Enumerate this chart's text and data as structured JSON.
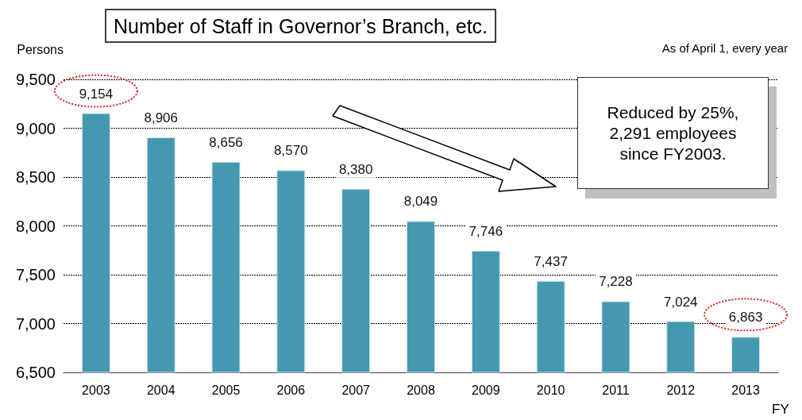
{
  "chart_data": {
    "type": "bar",
    "title": "Number of Staff in Governor’s Branch, etc.",
    "subtitle": "As of April 1, every year",
    "xlabel": "FY",
    "ylabel": "Persons",
    "categories": [
      "2003",
      "2004",
      "2005",
      "2006",
      "2007",
      "2008",
      "2009",
      "2010",
      "2011",
      "2012",
      "2013"
    ],
    "values": [
      9154,
      8906,
      8656,
      8570,
      8380,
      8049,
      7746,
      7437,
      7228,
      7024,
      6863
    ],
    "value_labels": [
      "9,154",
      "8,906",
      "8,656",
      "8,570",
      "8,380",
      "8,049",
      "7,746",
      "7,437",
      "7,228",
      "7,024",
      "6,863"
    ],
    "color": "#4698b0",
    "ylim": [
      6500,
      9500
    ],
    "yticks": [
      {
        "value": 6500,
        "label": "6,500"
      },
      {
        "value": 7000,
        "label": "7,000"
      },
      {
        "value": 7500,
        "label": "7,500"
      },
      {
        "value": 8000,
        "label": "8,000"
      },
      {
        "value": 8500,
        "label": "8,500"
      },
      {
        "value": 9000,
        "label": "9,000"
      },
      {
        "value": 9500,
        "label": "9,500"
      }
    ],
    "grid": "y",
    "annotations": [
      "Reduced by 25%,\n2,291 employees\nsince FY2003."
    ]
  }
}
